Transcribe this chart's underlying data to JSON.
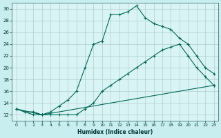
{
  "xlabel": "Humidex (Indice chaleur)",
  "xlim": [
    -0.5,
    23.5
  ],
  "ylim": [
    11,
    31
  ],
  "yticks": [
    12,
    14,
    16,
    18,
    20,
    22,
    24,
    26,
    28,
    30
  ],
  "xticks": [
    0,
    1,
    2,
    3,
    4,
    5,
    6,
    7,
    8,
    9,
    10,
    11,
    12,
    13,
    14,
    15,
    16,
    17,
    18,
    19,
    20,
    21,
    22,
    23
  ],
  "background_color": "#c8eef0",
  "plot_bg_color": "#d8f4f4",
  "grid_color": "#b0cdd0",
  "line_color": "#006655",
  "line1_x": [
    0,
    1,
    2,
    3,
    4,
    5,
    6,
    7,
    8,
    9,
    10,
    11,
    12,
    13,
    14,
    15,
    16,
    17,
    18,
    19,
    20,
    21,
    22,
    23
  ],
  "line1_y": [
    13,
    12.5,
    12.5,
    12,
    12,
    12,
    12,
    12,
    13,
    14,
    16,
    17,
    18,
    19,
    20,
    21,
    22,
    23,
    23.5,
    24,
    22,
    20,
    18.5,
    17
  ],
  "line2_x": [
    0,
    1,
    2,
    3,
    4,
    5,
    6,
    7,
    8,
    9,
    10,
    11,
    12,
    13,
    14,
    15,
    16,
    17,
    18,
    19,
    20,
    21,
    22,
    23
  ],
  "line2_y": [
    13,
    12.5,
    12,
    12,
    12.5,
    13.5,
    14.5,
    16,
    20,
    24,
    24.5,
    29,
    29,
    29.5,
    30.5,
    28.5,
    27.5,
    27,
    26.5,
    25,
    24,
    22,
    20,
    19
  ],
  "line3_x": [
    0,
    3,
    23
  ],
  "line3_y": [
    13,
    12,
    17
  ]
}
